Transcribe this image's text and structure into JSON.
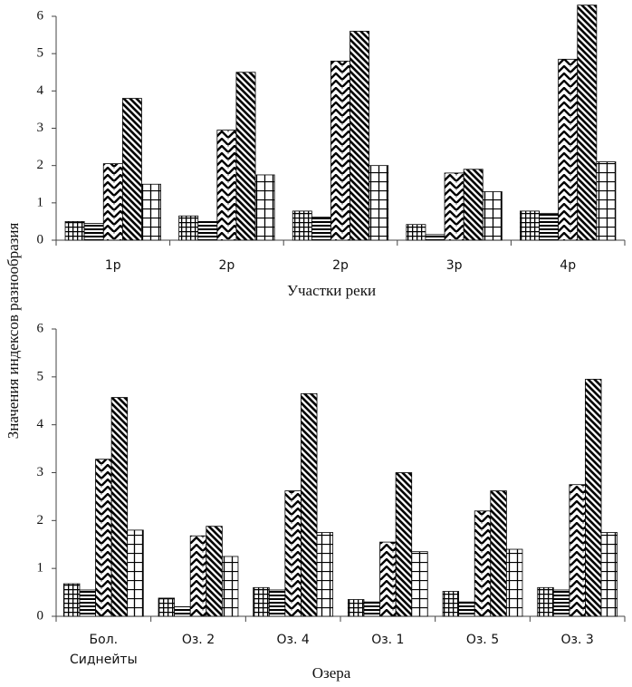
{
  "chart_data": [
    {
      "type": "bar",
      "ylabel": "Значения индексов разнообразия",
      "xlabel": "Участки реки",
      "categories": [
        "1р",
        "2р",
        "2р",
        "3р",
        "4р"
      ],
      "series": [
        {
          "pattern": "grid",
          "color": "#000000",
          "values": [
            0.5,
            0.65,
            0.78,
            0.42,
            0.78
          ]
        },
        {
          "pattern": "hlines",
          "color": "#000000",
          "values": [
            0.45,
            0.5,
            0.62,
            0.15,
            0.72
          ]
        },
        {
          "pattern": "chevron",
          "color": "#000000",
          "values": [
            2.05,
            2.95,
            4.8,
            1.8,
            4.85
          ]
        },
        {
          "pattern": "diag",
          "color": "#000000",
          "values": [
            3.8,
            4.5,
            5.6,
            1.9,
            6.3
          ]
        },
        {
          "pattern": "cross",
          "color": "#000000",
          "values": [
            1.5,
            1.75,
            2.0,
            1.3,
            2.1
          ]
        }
      ],
      "ylim": [
        0,
        6
      ],
      "yticks": [
        0,
        1,
        2,
        3,
        4,
        5,
        6
      ]
    },
    {
      "type": "bar",
      "xlabel": "Озера",
      "categories": [
        "Бол. Сиднейты",
        "Оз. 2",
        "Оз. 4",
        "Оз. 1",
        "Оз. 5",
        "Оз. 3"
      ],
      "series": [
        {
          "pattern": "grid",
          "color": "#000000",
          "values": [
            0.68,
            0.38,
            0.6,
            0.35,
            0.52,
            0.6
          ]
        },
        {
          "pattern": "hlines",
          "color": "#000000",
          "values": [
            0.55,
            0.2,
            0.55,
            0.3,
            0.3,
            0.55
          ]
        },
        {
          "pattern": "chevron",
          "color": "#000000",
          "values": [
            3.28,
            1.68,
            2.62,
            1.55,
            2.2,
            2.75
          ]
        },
        {
          "pattern": "diag",
          "color": "#000000",
          "values": [
            4.57,
            1.88,
            4.65,
            3.0,
            2.62,
            4.95
          ]
        },
        {
          "pattern": "cross",
          "color": "#000000",
          "values": [
            1.8,
            1.25,
            1.75,
            1.35,
            1.4,
            1.75
          ]
        }
      ],
      "ylim": [
        0,
        6
      ],
      "yticks": [
        0,
        1,
        2,
        3,
        4,
        5,
        6
      ]
    }
  ]
}
